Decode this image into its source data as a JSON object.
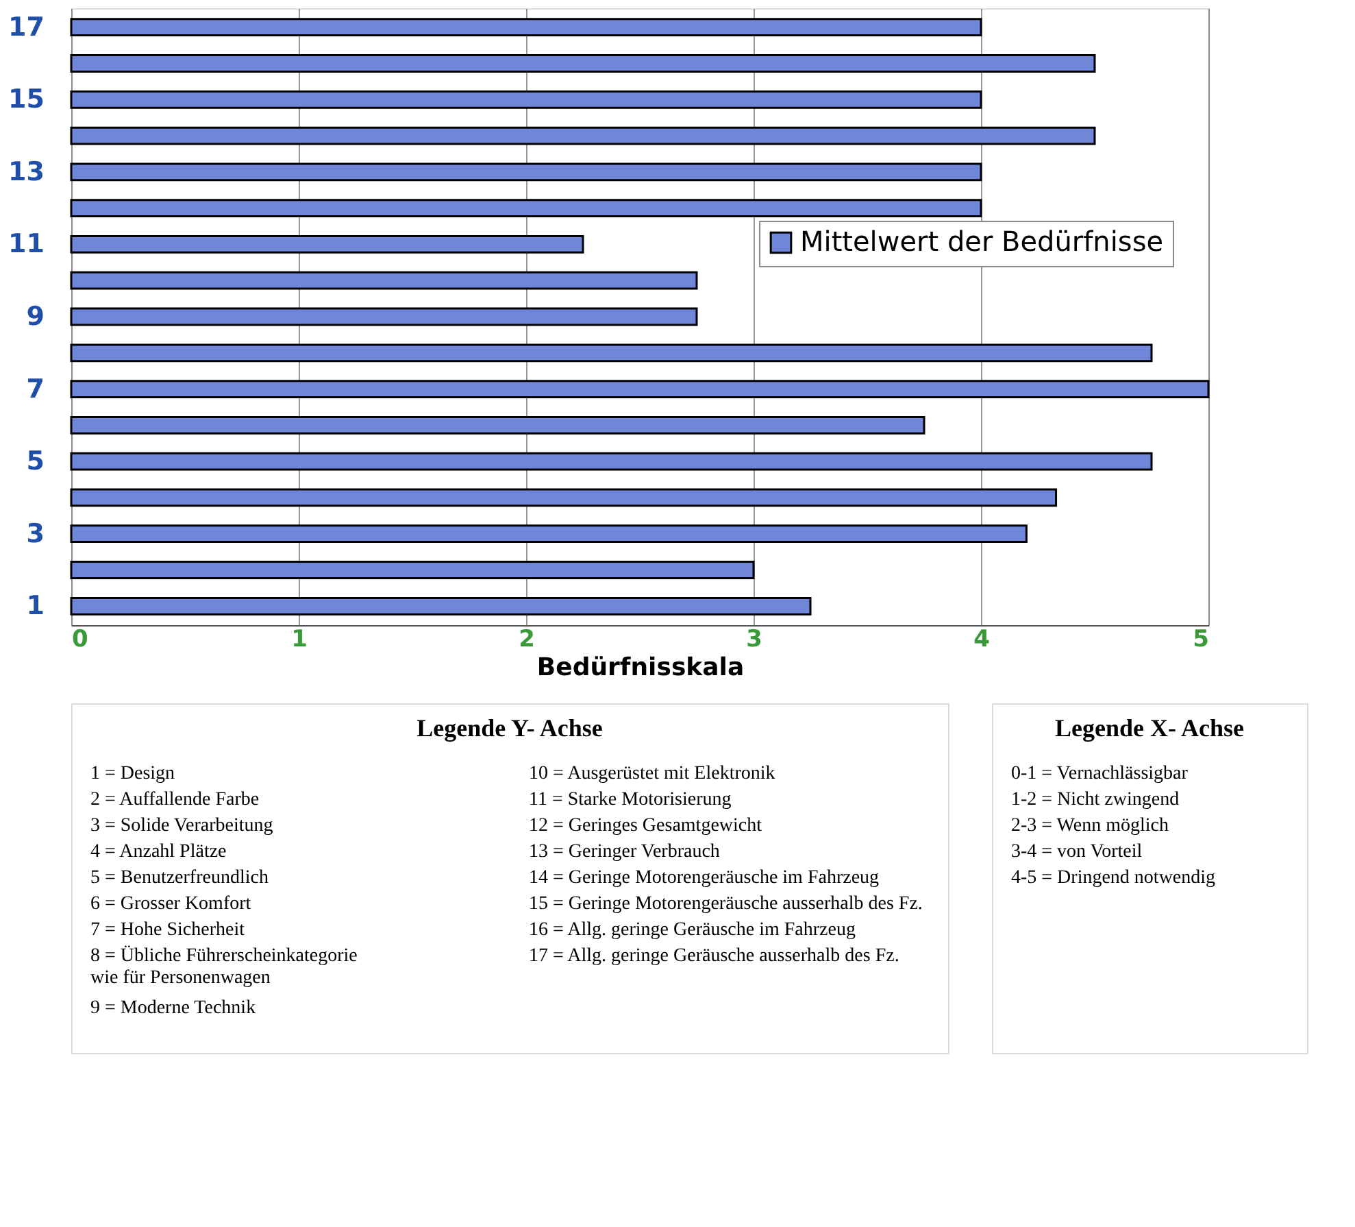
{
  "chart_data": [
    {
      "type": "bar",
      "orientation": "horizontal",
      "xlabel": "Bedürfnisskala",
      "categories": [
        "17",
        null,
        "15",
        null,
        "13",
        null,
        "11",
        null,
        "9",
        null,
        "7",
        null,
        "5",
        null,
        "3",
        null,
        "1"
      ],
      "series": [
        {
          "name": "Mittelwert der Bedürfnisse",
          "color": "#6f86d9",
          "values": [
            4,
            4.5,
            4,
            4.5,
            4,
            4,
            2.25,
            2.75,
            2.75,
            4.75,
            5,
            3.75,
            4.75,
            4.33,
            4.2,
            3,
            3.25
          ]
        }
      ],
      "xlim": [
        0,
        5
      ],
      "xticks": [
        0,
        1,
        2,
        3,
        4,
        5
      ],
      "grid": "x",
      "legend": "right"
    },
    {
      "type": "other",
      "title": "Legende Y- Achse",
      "annotations": [
        "1 = Design",
        "2 = Auffallende Farbe",
        "3 = Solide Verarbeitung",
        "4 = Anzahl Plätze",
        "5 = Benutzerfreundlich",
        "6 = Grosser Komfort",
        "7 = Hohe Sicherheit",
        "8 = Übliche Führerscheinkategorie\n     wie für Personenwagen",
        "9 = Moderne Technik",
        "10 = Ausgerüstet mit Elektronik",
        "11 = Starke Motorisierung",
        "12 = Geringes Gesamtgewicht",
        "13 = Geringer Verbrauch",
        "14 = Geringe Motorengeräusche im Fahrzeug",
        "15 = Geringe Motorengeräusche ausserhalb des Fz.",
        "16 = Allg. geringe Geräusche im Fahrzeug",
        "17 = Allg. geringe Geräusche ausserhalb des Fz."
      ]
    },
    {
      "type": "other",
      "title": "Legende X- Achse",
      "annotations": [
        "0-1 = Vernachlässigbar",
        "1-2 = Nicht zwingend",
        "2-3 = Wenn möglich",
        "3-4 = von Vorteil",
        "4-5 = Dringend notwendig"
      ]
    }
  ]
}
